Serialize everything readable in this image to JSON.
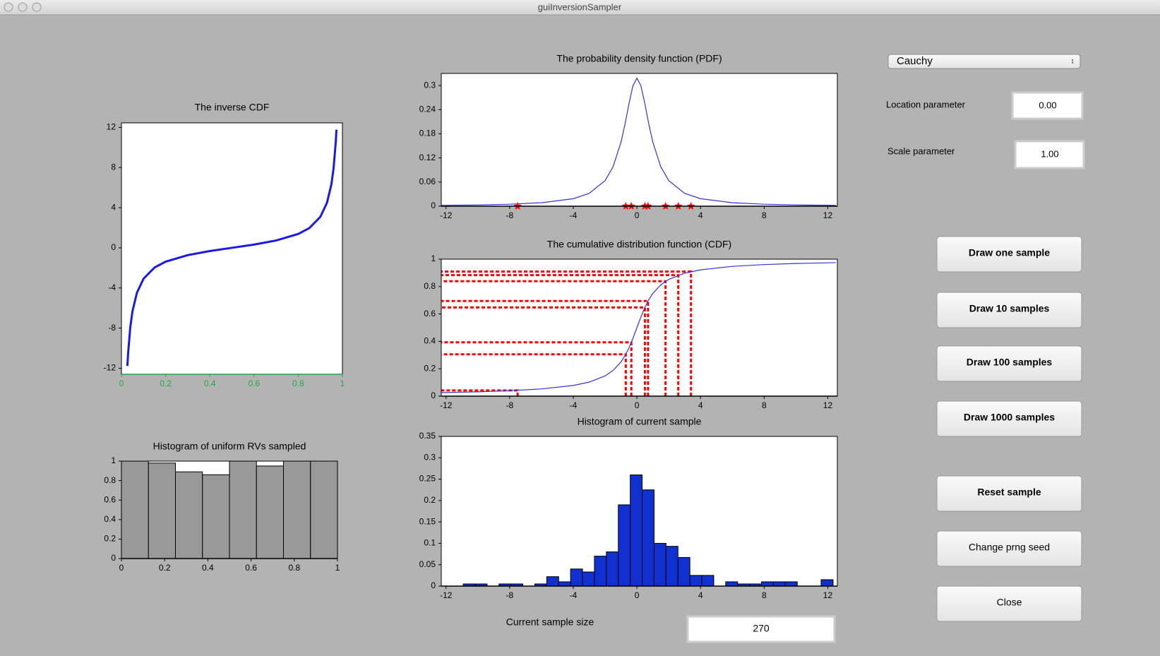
{
  "window": {
    "title": "guiInversionSampler"
  },
  "controls": {
    "distribution": "Cauchy",
    "location_label": "Location parameter",
    "location": "0.00",
    "scale_label": "Scale parameter",
    "scale": "1.00",
    "buttons": [
      "Draw one sample",
      "Draw 10 samples",
      "Draw 100 samples",
      "Draw 1000 samples",
      "Reset sample",
      "Change prng seed",
      "Close"
    ],
    "sample_size_label": "Current sample size",
    "sample_size": "270"
  },
  "chart_data": [
    {
      "type": "line",
      "title": "The inverse CDF",
      "x": [
        0.027,
        0.03,
        0.04,
        0.05,
        0.07,
        0.1,
        0.15,
        0.2,
        0.3,
        0.4,
        0.5,
        0.6,
        0.7,
        0.8,
        0.85,
        0.9,
        0.93,
        0.95,
        0.96,
        0.97,
        0.973
      ],
      "series": [
        {
          "color": "#1a1ae6",
          "values": [
            -11.77,
            -10.58,
            -7.92,
            -6.31,
            -4.48,
            -3.08,
            -1.96,
            -1.38,
            -0.73,
            -0.32,
            0,
            0.32,
            0.73,
            1.38,
            1.96,
            3.08,
            4.48,
            6.31,
            7.92,
            10.58,
            11.77
          ]
        }
      ],
      "xlim": [
        0,
        1
      ],
      "xticks": [
        0,
        0.2,
        0.4,
        0.6,
        0.8,
        1
      ],
      "ylim": [
        -12.6,
        12.45
      ],
      "yticks": [
        -12,
        -8,
        -4,
        0,
        4,
        8,
        12
      ],
      "x_axis_color": "#22aa44"
    },
    {
      "type": "line",
      "title": "The probability density function (PDF)",
      "x": [
        -12.5,
        -10,
        -8,
        -6,
        -4,
        -3,
        -2,
        -1.5,
        -1,
        -0.75,
        -0.5,
        -0.25,
        0,
        0.25,
        0.5,
        0.75,
        1,
        1.5,
        2,
        3,
        4,
        6,
        8,
        10,
        12.5
      ],
      "series": [
        {
          "color": "#3333dd",
          "values": [
            0.00202,
            0.00315,
            0.0049,
            0.0086,
            0.0187,
            0.0318,
            0.0637,
            0.0979,
            0.1592,
            0.2037,
            0.2546,
            0.2996,
            0.3183,
            0.2996,
            0.2546,
            0.2037,
            0.1592,
            0.0979,
            0.0637,
            0.0318,
            0.0187,
            0.0086,
            0.0049,
            0.00315,
            0.00202
          ]
        }
      ],
      "samples": {
        "color": "#ff0000",
        "x": [
          -7.5,
          -0.7,
          -0.35,
          0.5,
          0.7,
          1.8,
          2.6,
          3.4
        ],
        "values": [
          0,
          0,
          0,
          0,
          0,
          0,
          0,
          0
        ]
      },
      "xlim": [
        -12.3,
        12.6
      ],
      "xticks": [
        -12,
        -8,
        -4,
        0,
        4,
        8,
        12
      ],
      "ylim": [
        0,
        0.33
      ],
      "yticks": [
        0,
        0.06,
        0.12,
        0.18,
        0.24,
        0.3
      ]
    },
    {
      "type": "line",
      "title": "The cumulative distribution function (CDF)",
      "x": [
        -12.5,
        -10,
        -8,
        -6,
        -4,
        -3,
        -2,
        -1.5,
        -1,
        -0.75,
        -0.5,
        -0.25,
        0,
        0.25,
        0.5,
        0.75,
        1,
        1.5,
        2,
        3,
        4,
        6,
        8,
        10,
        12.5
      ],
      "series": [
        {
          "color": "#3333dd",
          "values": [
            0.0254,
            0.0317,
            0.0396,
            0.0526,
            0.078,
            0.1024,
            0.1476,
            0.1872,
            0.25,
            0.2952,
            0.3524,
            0.422,
            0.5,
            0.578,
            0.6476,
            0.7048,
            0.75,
            0.8128,
            0.8524,
            0.8976,
            0.922,
            0.9474,
            0.9604,
            0.9683,
            0.9746
          ]
        }
      ],
      "samples": {
        "color": "#ff0000",
        "x": [
          -7.5,
          -0.7,
          -0.35,
          0.5,
          0.7,
          1.8,
          2.6,
          3.4
        ],
        "values": [
          0.0422,
          0.3056,
          0.3928,
          0.6476,
          0.6944,
          0.8386,
          0.8831,
          0.9089
        ]
      },
      "xlim": [
        -12.3,
        12.6
      ],
      "xticks": [
        -12,
        -8,
        -4,
        0,
        4,
        8,
        12
      ],
      "ylim": [
        0,
        1
      ],
      "yticks": [
        0,
        0.2,
        0.4,
        0.6,
        0.8,
        1
      ]
    },
    {
      "type": "histogram",
      "title": "Histogram of current sample",
      "color": "#1030d0",
      "bins": [
        -11.67,
        -10.92,
        -10.17,
        -9.42,
        -8.67,
        -7.92,
        -7.17,
        -6.42,
        -5.67,
        -4.92,
        -4.17,
        -3.42,
        -2.67,
        -1.92,
        -1.17,
        -0.42,
        0.33,
        1.08,
        1.83,
        2.58,
        3.33,
        4.08,
        4.83,
        5.58,
        6.33,
        7.08,
        7.83,
        8.58,
        9.33,
        10.08,
        10.83,
        11.58,
        12.33
      ],
      "values": [
        0,
        0.005,
        0.005,
        0,
        0.005,
        0.005,
        0,
        0.005,
        0.022,
        0.01,
        0.04,
        0.033,
        0.07,
        0.08,
        0.19,
        0.26,
        0.225,
        0.1,
        0.093,
        0.067,
        0.025,
        0.025,
        0,
        0.01,
        0.005,
        0.005,
        0.01,
        0.01,
        0.01,
        0,
        0,
        0.015
      ],
      "xlim": [
        -12.3,
        12.6
      ],
      "xticks": [
        -12,
        -8,
        -4,
        0,
        4,
        8,
        12
      ],
      "ylim": [
        0,
        0.35
      ],
      "yticks": [
        0,
        0.05,
        0.1,
        0.15,
        0.2,
        0.25,
        0.3,
        0.35
      ]
    },
    {
      "type": "histogram",
      "title": "Histogram of uniform RVs sampled",
      "color": "#999999",
      "bins": [
        0,
        0.125,
        0.25,
        0.375,
        0.5,
        0.625,
        0.75,
        0.875,
        1
      ],
      "values": [
        1,
        0.98,
        0.89,
        0.86,
        1,
        0.95,
        1,
        1
      ],
      "xlim": [
        0,
        1
      ],
      "xticks": [
        0,
        0.2,
        0.4,
        0.6,
        0.8,
        1
      ],
      "ylim": [
        0,
        1
      ],
      "yticks": [
        0,
        0.2,
        0.4,
        0.6,
        0.8,
        1
      ]
    }
  ]
}
